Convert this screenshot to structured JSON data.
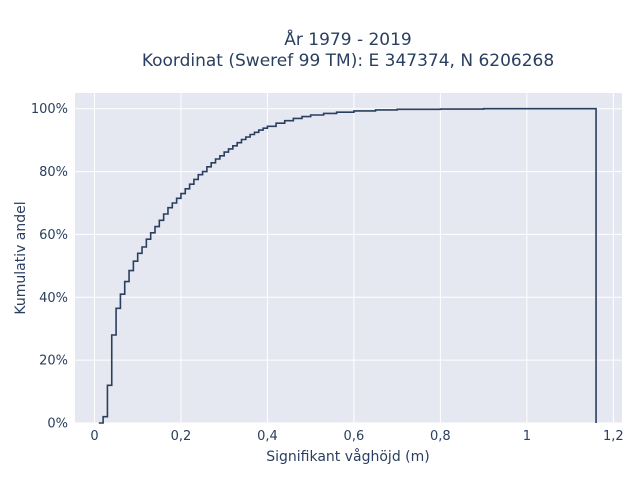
{
  "chart_data": {
    "type": "line",
    "step": true,
    "title": [
      "År 1979 - 2019",
      "Koordinat (Sweref 99 TM): E 347374, N 6206268"
    ],
    "xlabel": "Signifikant våghöjd (m)",
    "ylabel": "Kumulativ andel",
    "xlim": [
      -0.045,
      1.22
    ],
    "ylim": [
      0,
      1.05
    ],
    "xticks": [
      0,
      0.2,
      0.4,
      0.6,
      0.8,
      1.0,
      1.2
    ],
    "xtick_labels": [
      "0",
      "0,2",
      "0,4",
      "0,6",
      "0,8",
      "1",
      "1,2"
    ],
    "yticks": [
      0,
      0.2,
      0.4,
      0.6,
      0.8,
      1.0
    ],
    "ytick_labels": [
      "0%",
      "20%",
      "40%",
      "60%",
      "80%",
      "100%"
    ],
    "grid": true,
    "colors": {
      "background": "#e5e8f1",
      "line": "#2a3f5f",
      "grid": "#ffffff",
      "text": "#2a3f5f"
    },
    "series": [
      {
        "x": [
          0.01,
          0.02,
          0.03,
          0.04,
          0.05,
          0.06,
          0.07,
          0.08,
          0.09,
          0.1,
          0.11,
          0.12,
          0.13,
          0.14,
          0.15,
          0.16,
          0.17,
          0.18,
          0.19,
          0.2,
          0.21,
          0.22,
          0.23,
          0.24,
          0.25,
          0.26,
          0.27,
          0.28,
          0.29,
          0.3,
          0.31,
          0.32,
          0.33,
          0.34,
          0.35,
          0.36,
          0.37,
          0.38,
          0.39,
          0.4,
          0.42,
          0.44,
          0.46,
          0.48,
          0.5,
          0.53,
          0.56,
          0.6,
          0.65,
          0.7,
          0.8,
          0.9,
          1.0,
          1.16
        ],
        "y": [
          0.0,
          0.02,
          0.12,
          0.28,
          0.365,
          0.41,
          0.45,
          0.485,
          0.515,
          0.54,
          0.56,
          0.585,
          0.605,
          0.625,
          0.645,
          0.665,
          0.685,
          0.7,
          0.715,
          0.73,
          0.745,
          0.76,
          0.775,
          0.79,
          0.8,
          0.815,
          0.828,
          0.84,
          0.85,
          0.862,
          0.872,
          0.882,
          0.892,
          0.902,
          0.91,
          0.918,
          0.925,
          0.932,
          0.938,
          0.944,
          0.954,
          0.962,
          0.969,
          0.975,
          0.98,
          0.985,
          0.989,
          0.993,
          0.996,
          0.998,
          0.999,
          1.0,
          1.0,
          1.0
        ]
      }
    ]
  }
}
